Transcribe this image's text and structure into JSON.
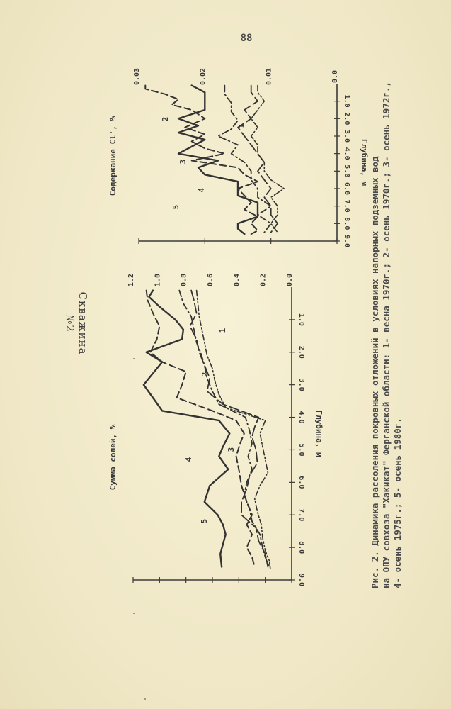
{
  "page": {
    "number": "88",
    "well_title": "Скважина №2"
  },
  "caption": {
    "lines": [
      "Рис. 2. Динамика рассоления покровных отложений в условиях напорных подземных вод",
      "на ОПУ совхоза \"Хакикат\" Ферганской области: 1- весна 1970г.; 2- осень 1970г.; 3- осень 1972г.,",
      "4- осень 1975г.; 5- осень 1980г."
    ]
  },
  "chart_data": [
    {
      "type": "line",
      "orientation": "rotated",
      "xlabel": "Глубина, м",
      "ylabel": "Сумма солей, %",
      "xlim": [
        0,
        9
      ],
      "ylim": [
        0,
        1.2
      ],
      "x_ticks": [
        "1.0",
        "2.0",
        "3.0",
        "4.0",
        "5.0",
        "6.0",
        "7.0",
        "8.0",
        "9.0"
      ],
      "y_ticks": [
        "0.0",
        "0.2",
        "0.4",
        "0.6",
        "0.8",
        "1.0",
        "1.2"
      ],
      "series": [
        {
          "name": "1",
          "style": "solid",
          "x": [
            0.1,
            0.3,
            0.6,
            1.0,
            1.3,
            1.6,
            2.0,
            2.3,
            2.7,
            3.0,
            3.4,
            3.8,
            4.1,
            4.5,
            4.9,
            5.2,
            5.6,
            6.1,
            6.6,
            7.0,
            7.3,
            7.6,
            7.9,
            8.2,
            8.6
          ],
          "y": [
            1.05,
            1.08,
            1.0,
            0.88,
            0.82,
            0.83,
            1.1,
            0.98,
            1.06,
            1.12,
            1.05,
            0.98,
            0.55,
            0.47,
            0.52,
            0.55,
            0.48,
            0.62,
            0.66,
            0.56,
            0.52,
            0.5,
            0.52,
            0.54,
            0.53
          ]
        },
        {
          "name": "2",
          "style": "dashed",
          "x": [
            0.1,
            0.4,
            0.8,
            1.2,
            1.6,
            2.0,
            2.3,
            2.6,
            3.0,
            3.4,
            3.8,
            4.1,
            4.5,
            4.8,
            5.2,
            5.6,
            6.1,
            6.6,
            7.0,
            7.3,
            7.6,
            8.0,
            8.3,
            8.6
          ],
          "y": [
            1.1,
            1.09,
            1.05,
            1.0,
            1.02,
            1.07,
            0.98,
            0.8,
            0.83,
            0.87,
            0.6,
            0.42,
            0.36,
            0.39,
            0.42,
            0.4,
            0.38,
            0.34,
            0.3,
            0.34,
            0.3,
            0.34,
            0.3,
            0.28
          ]
        },
        {
          "name": "3",
          "style": "dash-dot",
          "x": [
            0.1,
            0.5,
            0.9,
            1.3,
            1.7,
            2.0,
            2.4,
            2.8,
            3.2,
            3.6,
            4.0,
            4.4,
            4.8,
            5.2,
            5.6,
            6.0,
            6.4,
            6.8,
            7.2,
            7.6,
            8.0,
            8.3,
            8.6
          ],
          "y": [
            0.85,
            0.82,
            0.76,
            0.74,
            0.72,
            0.69,
            0.66,
            0.64,
            0.6,
            0.55,
            0.35,
            0.32,
            0.3,
            0.33,
            0.3,
            0.34,
            0.36,
            0.32,
            0.3,
            0.24,
            0.22,
            0.2,
            0.17
          ]
        },
        {
          "name": "4",
          "style": "long-dash",
          "x": [
            0.1,
            0.4,
            0.8,
            1.2,
            1.6,
            2.0,
            2.4,
            2.8,
            3.2,
            3.6,
            4.0,
            4.3,
            4.6,
            5.0,
            5.4,
            5.8,
            6.2,
            6.6,
            7.0,
            7.4,
            7.8,
            8.2,
            8.6
          ],
          "y": [
            0.76,
            0.74,
            0.72,
            0.77,
            0.72,
            0.7,
            0.66,
            0.62,
            0.64,
            0.52,
            0.25,
            0.28,
            0.3,
            0.27,
            0.26,
            0.32,
            0.34,
            0.38,
            0.38,
            0.27,
            0.25,
            0.2,
            0.18
          ]
        },
        {
          "name": "5",
          "style": "dash-dot-dot",
          "x": [
            0.1,
            0.5,
            0.9,
            1.3,
            1.7,
            2.1,
            2.5,
            2.9,
            3.3,
            3.7,
            4.1,
            4.5,
            4.9,
            5.3,
            5.7,
            6.1,
            6.5,
            6.9,
            7.3,
            7.7,
            8.1,
            8.4,
            8.7
          ],
          "y": [
            0.72,
            0.71,
            0.7,
            0.68,
            0.66,
            0.64,
            0.6,
            0.58,
            0.55,
            0.5,
            0.2,
            0.24,
            0.22,
            0.2,
            0.18,
            0.24,
            0.28,
            0.26,
            0.23,
            0.22,
            0.2,
            0.17,
            0.16
          ]
        }
      ]
    },
    {
      "type": "line",
      "orientation": "rotated",
      "xlabel": "Глубина, м",
      "ylabel": "Содержание Cl', %",
      "xlim": [
        0,
        9
      ],
      "ylim": [
        0,
        0.03
      ],
      "x_ticks": [
        "1.0",
        "2.0",
        "3.0",
        "4.0",
        "5.0",
        "6.0",
        "7.0",
        "8.0",
        "9.0"
      ],
      "y_ticks": [
        "0.0",
        "0.01",
        "0.02",
        "0.03"
      ],
      "series": [
        {
          "name": "1",
          "style": "solid",
          "x": [
            0.1,
            0.5,
            1.0,
            1.5,
            2.0,
            2.4,
            2.8,
            3.2,
            3.6,
            4.0,
            4.4,
            4.8,
            5.2,
            5.6,
            6.0,
            6.4,
            6.8,
            7.2,
            7.6,
            8.0,
            8.3,
            8.6
          ],
          "y": [
            0.022,
            0.02,
            0.02,
            0.02,
            0.024,
            0.021,
            0.024,
            0.02,
            0.022,
            0.024,
            0.018,
            0.021,
            0.02,
            0.015,
            0.015,
            0.015,
            0.012,
            0.012,
            0.012,
            0.015,
            0.015,
            0.014
          ]
        },
        {
          "name": "2",
          "style": "dashed",
          "x": [
            0.1,
            0.3,
            0.6,
            0.9,
            1.2,
            1.5,
            2.0,
            2.5,
            2.9,
            3.3,
            3.7,
            4.0,
            4.4,
            4.8,
            5.2,
            5.6,
            6.0,
            6.4,
            6.8,
            7.2,
            7.6,
            8.0,
            8.4,
            8.6
          ],
          "y": [
            0.029,
            0.029,
            0.026,
            0.024,
            0.025,
            0.022,
            0.02,
            0.023,
            0.02,
            0.022,
            0.02,
            0.017,
            0.022,
            0.015,
            0.014,
            0.012,
            0.015,
            0.014,
            0.013,
            0.014,
            0.012,
            0.013,
            0.012,
            0.013
          ]
        },
        {
          "name": "3",
          "style": "dash-dot",
          "x": [
            0.1,
            0.6,
            1.1,
            1.6,
            2.1,
            2.6,
            3.0,
            3.5,
            4.0,
            4.5,
            5.0,
            5.5,
            6.0,
            6.5,
            7.0,
            7.5,
            8.0,
            8.5
          ],
          "y": [
            0.017,
            0.017,
            0.016,
            0.016,
            0.015,
            0.016,
            0.018,
            0.015,
            0.016,
            0.014,
            0.013,
            0.013,
            0.012,
            0.012,
            0.01,
            0.012,
            0.01,
            0.011
          ]
        },
        {
          "name": "4",
          "style": "long-dash",
          "x": [
            0.1,
            0.5,
            1.0,
            1.5,
            2.0,
            2.5,
            3.0,
            3.5,
            4.0,
            4.5,
            5.0,
            5.5,
            6.0,
            6.5,
            7.0,
            7.5,
            8.0,
            8.5
          ],
          "y": [
            0.013,
            0.013,
            0.012,
            0.014,
            0.013,
            0.015,
            0.014,
            0.013,
            0.012,
            0.011,
            0.012,
            0.011,
            0.01,
            0.011,
            0.01,
            0.01,
            0.009,
            0.01
          ]
        },
        {
          "name": "5",
          "style": "dash-dot-dot",
          "x": [
            0.1,
            0.5,
            1.0,
            1.5,
            2.0,
            2.5,
            3.0,
            3.5,
            4.0,
            4.5,
            5.0,
            5.5,
            6.0,
            6.5,
            7.0,
            7.5,
            8.0,
            8.5
          ],
          "y": [
            0.012,
            0.012,
            0.011,
            0.012,
            0.013,
            0.012,
            0.013,
            0.012,
            0.012,
            0.011,
            0.011,
            0.01,
            0.008,
            0.01,
            0.009,
            0.009,
            0.01,
            0.009
          ]
        }
      ]
    }
  ]
}
